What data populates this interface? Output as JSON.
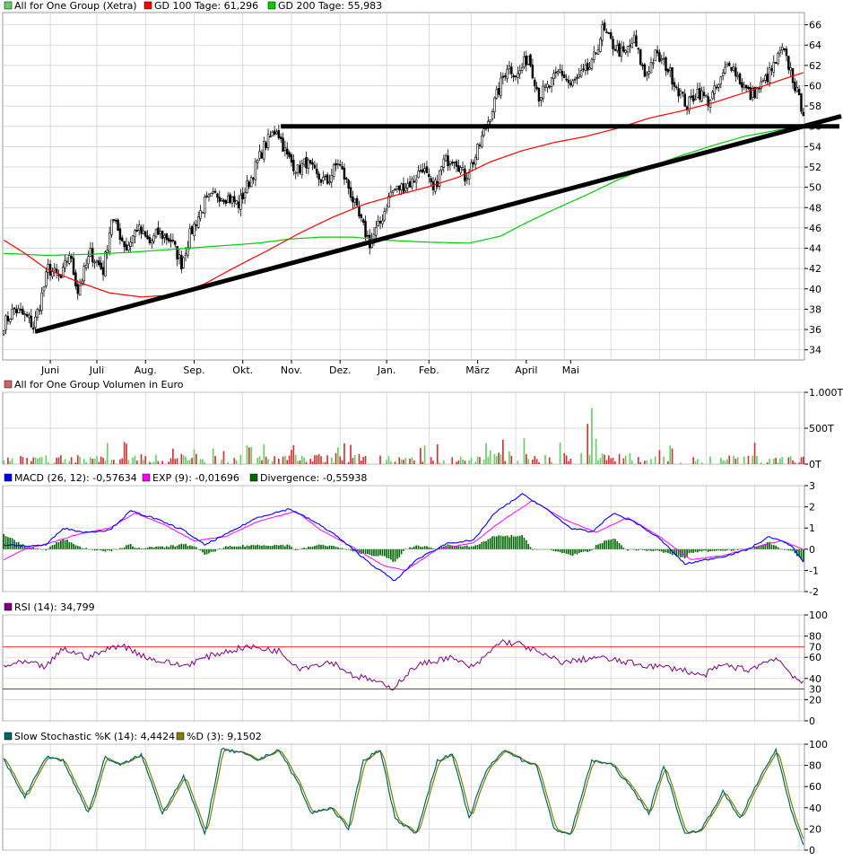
{
  "colors": {
    "up": "#66cc66",
    "down": "#cc3333",
    "candle_up": "#ffffff",
    "candle_down": "#000000",
    "gd100": "#ff0000",
    "gd200": "#00cc00",
    "trend": "#000000",
    "macd": "#0000ff",
    "exp": "#ff00ff",
    "divergence": "#006600",
    "rsi": "#800080",
    "stoch_k": "#006666",
    "stoch_d": "#808000",
    "grid": "#cccccc",
    "rsi_70": "#ff0000",
    "rsi_30": "#0000ff"
  },
  "legend": {
    "price": [
      "All for One Group (Xetra)",
      "GD 100 Tage: 61,296",
      "GD 200 Tage: 55,983"
    ],
    "volume": "All for One Group Volumen in Euro",
    "macd": [
      "MACD (26, 12): -0,57634",
      "EXP (9): -0,01696",
      "Divergence: -0,55938"
    ],
    "rsi": "RSI (14): 34,799",
    "stoch": [
      "Slow Stochastic %K (14): 4,4424",
      "%D (3): 9,1502"
    ]
  },
  "chart_data": [
    {
      "type": "candlestick",
      "x_labels": [
        "Juni",
        "Juli",
        "Aug.",
        "Sep.",
        "Okt.",
        "Nov.",
        "Dez.",
        "Jan.",
        "Feb.",
        "März",
        "April",
        "Mai"
      ],
      "y_ticks": [
        34,
        36,
        38,
        40,
        42,
        44,
        46,
        48,
        50,
        52,
        54,
        56,
        58,
        60,
        62,
        64,
        66
      ],
      "ylim": [
        33,
        67.2
      ],
      "close_anchors": [
        [
          0,
          36.5
        ],
        [
          5,
          38
        ],
        [
          12,
          37
        ],
        [
          14,
          36.2
        ],
        [
          17,
          38.5
        ],
        [
          21,
          42
        ],
        [
          27,
          41
        ],
        [
          31,
          43.5
        ],
        [
          35,
          39.8
        ],
        [
          41,
          43.5
        ],
        [
          47,
          41.8
        ],
        [
          51,
          47
        ],
        [
          58,
          44
        ],
        [
          63,
          46
        ],
        [
          69,
          44.5
        ],
        [
          73,
          45.5
        ],
        [
          79,
          44.8
        ],
        [
          84,
          42.5
        ],
        [
          88,
          45.3
        ],
        [
          95,
          48.5
        ],
        [
          101,
          49.3
        ],
        [
          106,
          49
        ],
        [
          111,
          48.3
        ],
        [
          117,
          51
        ],
        [
          123,
          54
        ],
        [
          129,
          55.8
        ],
        [
          134,
          53
        ],
        [
          139,
          51.7
        ],
        [
          143,
          52.5
        ],
        [
          148,
          51
        ],
        [
          153,
          50.5
        ],
        [
          158,
          52.5
        ],
        [
          163,
          50
        ],
        [
          168,
          47
        ],
        [
          173,
          44.5
        ],
        [
          178,
          46.5
        ],
        [
          183,
          49.5
        ],
        [
          188,
          50
        ],
        [
          193,
          50.5
        ],
        [
          198,
          52
        ],
        [
          203,
          49.5
        ],
        [
          208,
          52.5
        ],
        [
          213,
          53
        ],
        [
          218,
          51
        ],
        [
          223,
          53
        ],
        [
          228,
          56
        ],
        [
          233,
          59
        ],
        [
          238,
          62
        ],
        [
          243,
          61
        ],
        [
          248,
          63
        ],
        [
          253,
          59
        ],
        [
          258,
          60
        ],
        [
          263,
          61.5
        ],
        [
          268,
          60
        ],
        [
          273,
          61
        ],
        [
          278,
          62
        ],
        [
          283,
          65.5
        ],
        [
          288,
          64
        ],
        [
          293,
          63
        ],
        [
          298,
          64.5
        ],
        [
          303,
          61
        ],
        [
          308,
          63
        ],
        [
          313,
          62
        ],
        [
          318,
          60
        ],
        [
          323,
          58
        ],
        [
          328,
          59.5
        ],
        [
          333,
          58.5
        ],
        [
          338,
          60
        ],
        [
          343,
          62.5
        ],
        [
          348,
          60.5
        ],
        [
          353,
          59
        ],
        [
          358,
          60
        ],
        [
          363,
          61.5
        ],
        [
          368,
          63.5
        ],
        [
          372,
          61.5
        ],
        [
          376,
          58.5
        ],
        [
          378,
          57.6
        ]
      ],
      "gd100_anchors": [
        [
          0,
          44.8
        ],
        [
          10,
          43.5
        ],
        [
          20,
          42
        ],
        [
          35,
          40.7
        ],
        [
          50,
          39.6
        ],
        [
          65,
          39.2
        ],
        [
          80,
          39.4
        ],
        [
          95,
          40.5
        ],
        [
          110,
          42.2
        ],
        [
          125,
          43.8
        ],
        [
          140,
          45.5
        ],
        [
          155,
          47
        ],
        [
          170,
          48.3
        ],
        [
          185,
          49.2
        ],
        [
          200,
          50
        ],
        [
          215,
          51
        ],
        [
          230,
          52.5
        ],
        [
          245,
          53.6
        ],
        [
          260,
          54.4
        ],
        [
          275,
          55
        ],
        [
          290,
          55.8
        ],
        [
          305,
          56.8
        ],
        [
          320,
          57.5
        ],
        [
          335,
          58.3
        ],
        [
          350,
          59.3
        ],
        [
          365,
          60.4
        ],
        [
          378,
          61.296
        ]
      ],
      "gd200_anchors": [
        [
          0,
          43.5
        ],
        [
          20,
          43.3
        ],
        [
          40,
          43.4
        ],
        [
          60,
          43.6
        ],
        [
          80,
          43.9
        ],
        [
          100,
          44.2
        ],
        [
          120,
          44.5
        ],
        [
          135,
          44.9
        ],
        [
          150,
          45.1
        ],
        [
          165,
          45.1
        ],
        [
          180,
          44.8
        ],
        [
          200,
          44.6
        ],
        [
          220,
          44.5
        ],
        [
          235,
          45.2
        ],
        [
          245,
          46.3
        ],
        [
          260,
          47.8
        ],
        [
          275,
          49.2
        ],
        [
          290,
          50.7
        ],
        [
          305,
          52
        ],
        [
          320,
          53.1
        ],
        [
          335,
          54.1
        ],
        [
          350,
          55
        ],
        [
          365,
          55.6
        ],
        [
          378,
          55.983
        ]
      ],
      "horizontal_line": {
        "from_index": 131,
        "to_index": 400,
        "value": 56
      },
      "trend_line": {
        "from": [
          15,
          35.8
        ],
        "to": [
          400,
          57
        ]
      }
    },
    {
      "type": "bar",
      "series": "volume",
      "y_ticks": [
        "1.000T",
        "500T",
        "0T"
      ],
      "ylim": [
        0,
        1000
      ],
      "values_note": "one bar per trading day; colored by day up/down"
    },
    {
      "type": "line",
      "series_names": [
        "MACD",
        "EXP",
        "Divergence"
      ],
      "y_ticks": [
        3,
        2,
        1,
        0,
        -1,
        -2
      ],
      "ylim": [
        -2,
        3
      ],
      "macd_anchors": [
        [
          0,
          0.2
        ],
        [
          10,
          0.15
        ],
        [
          20,
          0.2
        ],
        [
          28,
          1.0
        ],
        [
          38,
          0.8
        ],
        [
          50,
          0.9
        ],
        [
          60,
          1.8
        ],
        [
          70,
          1.5
        ],
        [
          85,
          0.9
        ],
        [
          95,
          0.2
        ],
        [
          105,
          0.7
        ],
        [
          120,
          1.5
        ],
        [
          135,
          1.9
        ],
        [
          145,
          1.4
        ],
        [
          155,
          0.8
        ],
        [
          165,
          0.0
        ],
        [
          175,
          -0.8
        ],
        [
          185,
          -1.5
        ],
        [
          195,
          -0.5
        ],
        [
          210,
          0.3
        ],
        [
          222,
          0.4
        ],
        [
          232,
          1.7
        ],
        [
          245,
          2.6
        ],
        [
          255,
          2.0
        ],
        [
          268,
          1.0
        ],
        [
          278,
          0.8
        ],
        [
          288,
          1.7
        ],
        [
          298,
          1.3
        ],
        [
          310,
          0.5
        ],
        [
          322,
          -0.7
        ],
        [
          332,
          -0.5
        ],
        [
          342,
          -0.3
        ],
        [
          352,
          0.0
        ],
        [
          362,
          0.6
        ],
        [
          372,
          0.2
        ],
        [
          378,
          -0.58
        ]
      ],
      "exp_anchors": [
        [
          0,
          -0.5
        ],
        [
          10,
          0.0
        ],
        [
          22,
          0.3
        ],
        [
          35,
          0.7
        ],
        [
          50,
          1.0
        ],
        [
          62,
          1.7
        ],
        [
          75,
          1.2
        ],
        [
          90,
          0.4
        ],
        [
          105,
          0.6
        ],
        [
          120,
          1.3
        ],
        [
          138,
          1.8
        ],
        [
          150,
          0.9
        ],
        [
          165,
          0.1
        ],
        [
          180,
          -0.8
        ],
        [
          190,
          -1.0
        ],
        [
          205,
          0.0
        ],
        [
          222,
          0.3
        ],
        [
          235,
          1.3
        ],
        [
          250,
          2.3
        ],
        [
          265,
          1.4
        ],
        [
          280,
          0.8
        ],
        [
          295,
          1.5
        ],
        [
          310,
          0.6
        ],
        [
          325,
          -0.5
        ],
        [
          340,
          -0.3
        ],
        [
          355,
          0.1
        ],
        [
          368,
          0.4
        ],
        [
          378,
          -0.02
        ]
      ]
    },
    {
      "type": "line",
      "series_names": [
        "RSI"
      ],
      "y_ticks": [
        100,
        80,
        60,
        40,
        20,
        0
      ],
      "ylim": [
        0,
        100
      ],
      "reference_lines": [
        70,
        30
      ],
      "rsi_anchors": [
        [
          0,
          52
        ],
        [
          10,
          55
        ],
        [
          20,
          51
        ],
        [
          28,
          68
        ],
        [
          40,
          60
        ],
        [
          55,
          72
        ],
        [
          70,
          58
        ],
        [
          85,
          52
        ],
        [
          100,
          63
        ],
        [
          115,
          70
        ],
        [
          130,
          66
        ],
        [
          140,
          50
        ],
        [
          155,
          56
        ],
        [
          165,
          43
        ],
        [
          175,
          38
        ],
        [
          183,
          30
        ],
        [
          195,
          52
        ],
        [
          210,
          60
        ],
        [
          222,
          50
        ],
        [
          235,
          75
        ],
        [
          245,
          72
        ],
        [
          255,
          62
        ],
        [
          265,
          55
        ],
        [
          280,
          60
        ],
        [
          295,
          55
        ],
        [
          305,
          52
        ],
        [
          320,
          49
        ],
        [
          330,
          42
        ],
        [
          340,
          53
        ],
        [
          352,
          48
        ],
        [
          365,
          60
        ],
        [
          372,
          45
        ],
        [
          378,
          34.8
        ]
      ]
    },
    {
      "type": "line",
      "series_names": [
        "%K",
        "%D"
      ],
      "y_ticks": [
        100,
        80,
        60,
        40,
        20,
        0
      ],
      "ylim": [
        0,
        100
      ],
      "stoch_anchors": [
        [
          0,
          85
        ],
        [
          10,
          50
        ],
        [
          20,
          88
        ],
        [
          28,
          85
        ],
        [
          40,
          35
        ],
        [
          48,
          88
        ],
        [
          55,
          80
        ],
        [
          65,
          90
        ],
        [
          75,
          35
        ],
        [
          85,
          70
        ],
        [
          95,
          15
        ],
        [
          103,
          95
        ],
        [
          112,
          92
        ],
        [
          120,
          85
        ],
        [
          130,
          95
        ],
        [
          140,
          60
        ],
        [
          145,
          35
        ],
        [
          155,
          40
        ],
        [
          163,
          20
        ],
        [
          170,
          85
        ],
        [
          178,
          95
        ],
        [
          185,
          30
        ],
        [
          195,
          15
        ],
        [
          205,
          85
        ],
        [
          212,
          90
        ],
        [
          220,
          30
        ],
        [
          228,
          75
        ],
        [
          237,
          95
        ],
        [
          245,
          85
        ],
        [
          252,
          80
        ],
        [
          260,
          20
        ],
        [
          268,
          15
        ],
        [
          278,
          85
        ],
        [
          288,
          80
        ],
        [
          298,
          55
        ],
        [
          305,
          35
        ],
        [
          312,
          80
        ],
        [
          322,
          15
        ],
        [
          330,
          20
        ],
        [
          340,
          55
        ],
        [
          348,
          30
        ],
        [
          358,
          70
        ],
        [
          365,
          95
        ],
        [
          372,
          40
        ],
        [
          378,
          4.4
        ]
      ]
    }
  ]
}
